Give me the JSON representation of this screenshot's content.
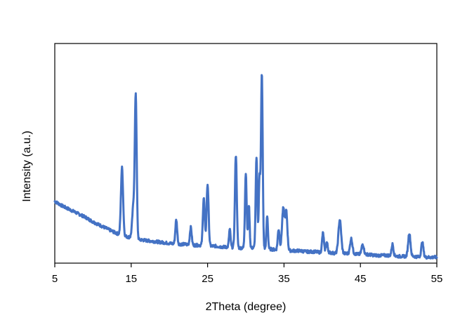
{
  "chart_data": {
    "type": "line",
    "xlabel": "2Theta (degree)",
    "ylabel": "Intensity (a.u.)",
    "xlim": [
      5,
      55
    ],
    "ylim": [
      0,
      100
    ],
    "x_ticks": [
      "5",
      "15",
      "25",
      "35",
      "45",
      "55"
    ],
    "x_tick_values": [
      5,
      15,
      25,
      35,
      45,
      55
    ],
    "y_ticks_shown": false,
    "grid": false,
    "line_color": "#4472C4",
    "series": [
      {
        "values_note": "approximate",
        "baseline": [
          [
            5,
            32
          ],
          [
            6,
            29.5
          ],
          [
            7,
            27.5
          ],
          [
            8,
            25.5
          ],
          [
            9,
            23.5
          ],
          [
            10,
            21
          ],
          [
            11,
            19
          ],
          [
            12,
            17
          ],
          [
            13,
            15
          ],
          [
            14,
            13.5
          ],
          [
            15,
            12.5
          ],
          [
            16,
            11.5
          ],
          [
            17,
            11
          ],
          [
            18,
            10.5
          ],
          [
            19,
            10
          ],
          [
            20,
            9.5
          ],
          [
            21,
            9
          ],
          [
            22,
            9
          ],
          [
            23,
            8.5
          ],
          [
            24,
            8.5
          ],
          [
            25,
            8
          ],
          [
            26,
            8
          ],
          [
            27,
            7.5
          ],
          [
            28,
            7.5
          ],
          [
            29,
            7
          ],
          [
            30,
            7
          ],
          [
            31,
            7
          ],
          [
            32,
            6.5
          ],
          [
            33,
            6.5
          ],
          [
            34,
            6
          ],
          [
            35,
            6
          ],
          [
            36,
            5.5
          ],
          [
            37,
            5.5
          ],
          [
            38,
            5
          ],
          [
            39,
            5
          ],
          [
            40,
            4.5
          ],
          [
            41,
            4.5
          ],
          [
            42,
            4
          ],
          [
            43,
            4
          ],
          [
            44,
            4
          ],
          [
            45,
            3.5
          ],
          [
            46,
            3.5
          ],
          [
            47,
            3
          ],
          [
            48,
            3
          ],
          [
            49,
            3
          ],
          [
            50,
            2.5
          ],
          [
            51,
            2.5
          ],
          [
            52,
            2.5
          ],
          [
            53,
            2
          ],
          [
            54,
            2
          ],
          [
            55,
            2
          ]
        ],
        "peaks": [
          {
            "x": 13.8,
            "y": 50,
            "w": 0.14
          },
          {
            "x": 15.3,
            "y": 30,
            "w": 0.16
          },
          {
            "x": 15.6,
            "y": 87,
            "w": 0.12
          },
          {
            "x": 20.9,
            "y": 22,
            "w": 0.12
          },
          {
            "x": 22.8,
            "y": 18,
            "w": 0.12
          },
          {
            "x": 24.5,
            "y": 34,
            "w": 0.12
          },
          {
            "x": 25.0,
            "y": 41,
            "w": 0.13
          },
          {
            "x": 27.9,
            "y": 17,
            "w": 0.1
          },
          {
            "x": 28.7,
            "y": 57,
            "w": 0.12
          },
          {
            "x": 30.0,
            "y": 47,
            "w": 0.11
          },
          {
            "x": 30.4,
            "y": 30,
            "w": 0.1
          },
          {
            "x": 31.4,
            "y": 55,
            "w": 0.11
          },
          {
            "x": 31.8,
            "y": 45,
            "w": 0.1
          },
          {
            "x": 32.1,
            "y": 100,
            "w": 0.11
          },
          {
            "x": 32.8,
            "y": 24,
            "w": 0.1
          },
          {
            "x": 34.3,
            "y": 17,
            "w": 0.12
          },
          {
            "x": 34.9,
            "y": 28,
            "w": 0.16
          },
          {
            "x": 35.3,
            "y": 26,
            "w": 0.14
          },
          {
            "x": 40.1,
            "y": 15,
            "w": 0.12
          },
          {
            "x": 40.6,
            "y": 10,
            "w": 0.12
          },
          {
            "x": 42.3,
            "y": 22,
            "w": 0.18
          },
          {
            "x": 43.8,
            "y": 12,
            "w": 0.15
          },
          {
            "x": 45.3,
            "y": 9,
            "w": 0.15
          },
          {
            "x": 49.2,
            "y": 9,
            "w": 0.12
          },
          {
            "x": 51.4,
            "y": 15,
            "w": 0.15
          },
          {
            "x": 53.1,
            "y": 10,
            "w": 0.14
          }
        ]
      }
    ]
  }
}
